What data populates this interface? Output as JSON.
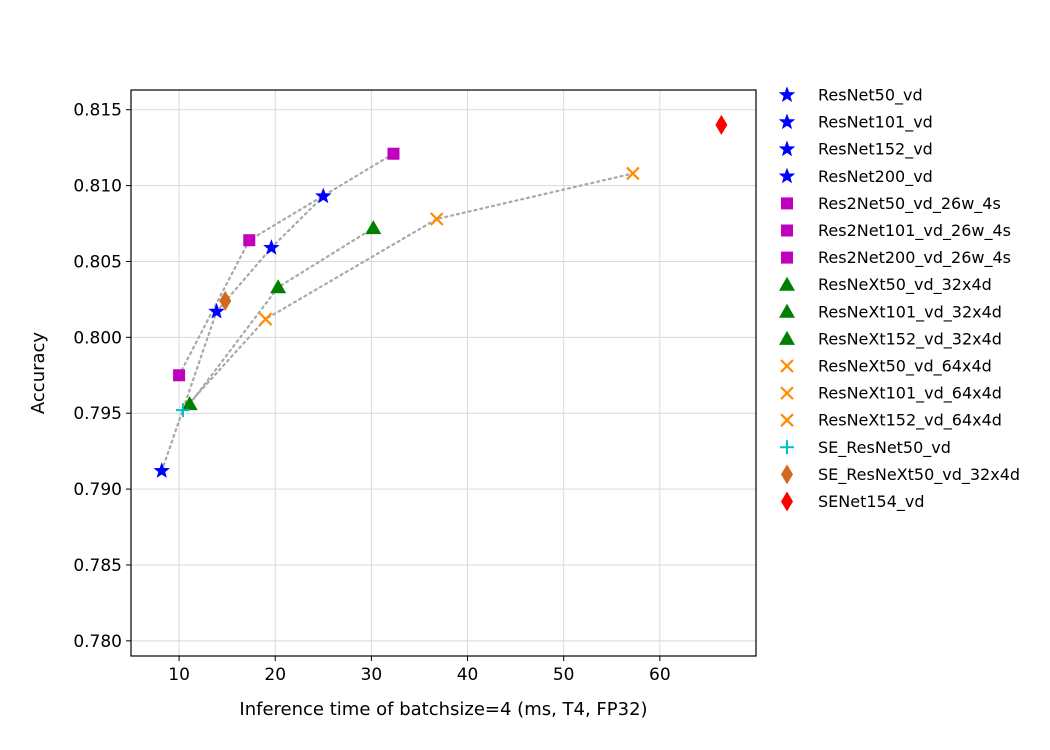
{
  "chart_data": {
    "type": "scatter",
    "xlabel": "Inference time of batchsize=4 (ms, T4, FP32)",
    "ylabel": "Accuracy",
    "xlim": [
      5,
      70
    ],
    "ylim": [
      0.779,
      0.8163
    ],
    "xticks": [
      10,
      20,
      30,
      40,
      50,
      60
    ],
    "yticks": [
      0.78,
      0.785,
      0.79,
      0.795,
      0.8,
      0.805,
      0.81,
      0.815
    ],
    "grid": true,
    "legend_position": "outside-right",
    "series": [
      {
        "name": "ResNet50_vd",
        "marker": "star",
        "color": "#0000ff",
        "points": [
          [
            8.2,
            0.7912
          ]
        ]
      },
      {
        "name": "ResNet101_vd",
        "marker": "star",
        "color": "#0000ff",
        "points": [
          [
            13.9,
            0.8017
          ]
        ]
      },
      {
        "name": "ResNet152_vd",
        "marker": "star",
        "color": "#0000ff",
        "points": [
          [
            19.6,
            0.8059
          ]
        ]
      },
      {
        "name": "ResNet200_vd",
        "marker": "star",
        "color": "#0000ff",
        "points": [
          [
            25.0,
            0.8093
          ]
        ]
      },
      {
        "name": "Res2Net50_vd_26w_4s",
        "marker": "square",
        "color": "#bf00bf",
        "points": [
          [
            10.0,
            0.7975
          ]
        ]
      },
      {
        "name": "Res2Net101_vd_26w_4s",
        "marker": "square",
        "color": "#bf00bf",
        "points": [
          [
            17.3,
            0.8064
          ]
        ]
      },
      {
        "name": "Res2Net200_vd_26w_4s",
        "marker": "square",
        "color": "#bf00bf",
        "points": [
          [
            32.3,
            0.8121
          ]
        ]
      },
      {
        "name": "ResNeXt50_vd_32x4d",
        "marker": "triangle",
        "color": "#008000",
        "points": [
          [
            11.1,
            0.7956
          ]
        ]
      },
      {
        "name": "ResNeXt101_vd_32x4d",
        "marker": "triangle",
        "color": "#008000",
        "points": [
          [
            20.3,
            0.8033
          ]
        ]
      },
      {
        "name": "ResNeXt152_vd_32x4d",
        "marker": "triangle",
        "color": "#008000",
        "points": [
          [
            30.2,
            0.8072
          ]
        ]
      },
      {
        "name": "ResNeXt50_vd_64x4d",
        "marker": "x",
        "color": "#ff8c00",
        "points": [
          [
            19.0,
            0.8012
          ]
        ]
      },
      {
        "name": "ResNeXt101_vd_64x4d",
        "marker": "x",
        "color": "#ff8c00",
        "points": [
          [
            36.8,
            0.8078
          ]
        ]
      },
      {
        "name": "ResNeXt152_vd_64x4d",
        "marker": "x",
        "color": "#ff8c00",
        "points": [
          [
            57.2,
            0.8108
          ]
        ]
      },
      {
        "name": "SE_ResNet50_vd",
        "marker": "plus",
        "color": "#00bfbf",
        "points": [
          [
            10.4,
            0.7952
          ]
        ]
      },
      {
        "name": "SE_ResNeXt50_vd_32x4d",
        "marker": "diamond",
        "color": "#d2691e",
        "points": [
          [
            14.8,
            0.8024
          ]
        ]
      },
      {
        "name": "SENet154_vd",
        "marker": "diamond",
        "color": "#ff0000",
        "points": [
          [
            66.4,
            0.814
          ]
        ]
      }
    ],
    "trend_lines": [
      {
        "color": "#a9a9a9",
        "points": [
          [
            8.2,
            0.7912
          ],
          [
            13.9,
            0.8017
          ],
          [
            19.6,
            0.8059
          ],
          [
            25.0,
            0.8093
          ]
        ]
      },
      {
        "color": "#a9a9a9",
        "points": [
          [
            10.0,
            0.7975
          ],
          [
            17.3,
            0.8064
          ],
          [
            32.3,
            0.8121
          ]
        ]
      },
      {
        "color": "#a9a9a9",
        "points": [
          [
            11.1,
            0.7956
          ],
          [
            20.3,
            0.8033
          ],
          [
            30.2,
            0.8072
          ]
        ]
      },
      {
        "color": "#a9a9a9",
        "points": [
          [
            10.4,
            0.7952
          ],
          [
            19.0,
            0.8012
          ],
          [
            36.8,
            0.8078
          ],
          [
            57.2,
            0.8108
          ]
        ]
      }
    ]
  }
}
